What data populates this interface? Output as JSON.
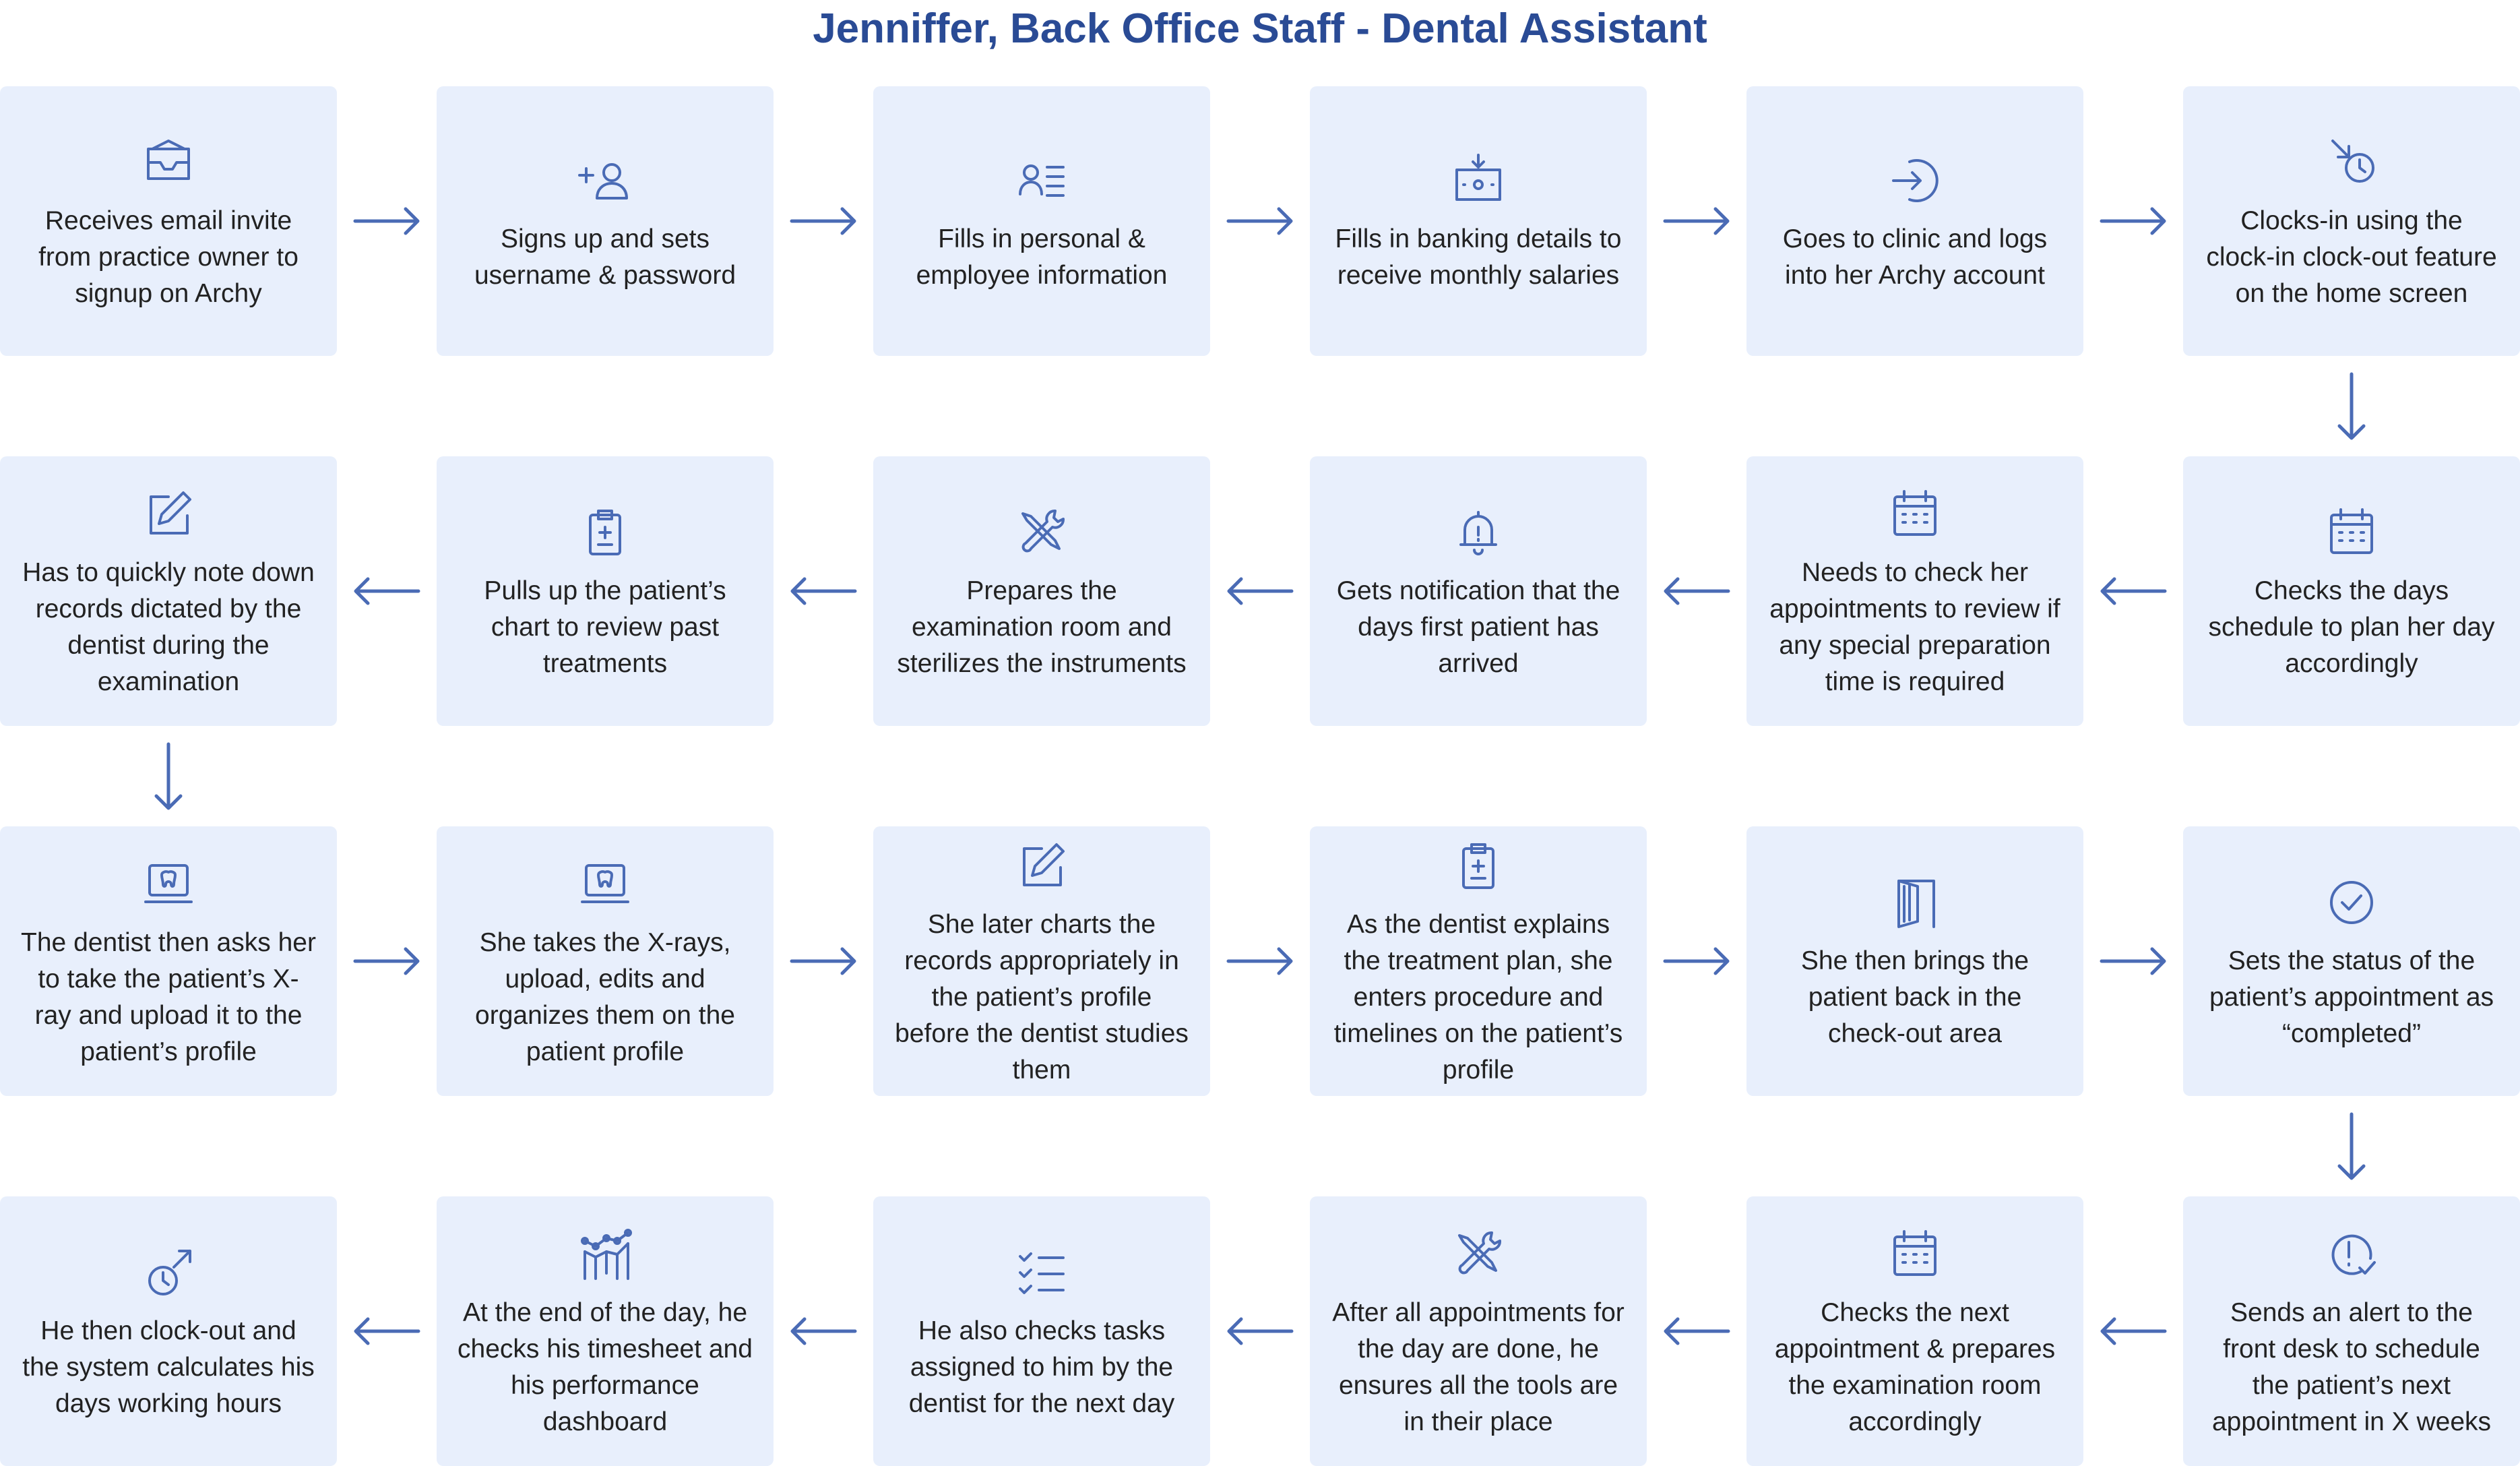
{
  "title": "Jenniffer, Back Office Staff - Dental Assistant",
  "colors": {
    "accent": "#4a6bb5",
    "card": "#e8effc",
    "title": "#2a4b95"
  },
  "rows": [
    [
      {
        "icon": "email-icon",
        "text": "Receives email invite from practice owner to signup on Archy"
      },
      {
        "icon": "add-user-icon",
        "text": "Signs up and sets username & password"
      },
      {
        "icon": "personal-info-icon",
        "text": "Fills in personal & employee information"
      },
      {
        "icon": "banking-icon",
        "text": "Fills in banking details to receive monthly salaries"
      },
      {
        "icon": "login-icon",
        "text": "Goes to clinic and logs into her Archy account"
      },
      {
        "icon": "clock-in-icon",
        "text": "Clocks-in using the clock-in clock-out feature on the home screen"
      }
    ],
    [
      {
        "icon": "calendar-icon",
        "text": "Checks the days schedule to plan her day accordingly"
      },
      {
        "icon": "calendar-icon",
        "text": "Needs to check her appointments to review if any special preparation time is required"
      },
      {
        "icon": "bell-icon",
        "text": "Gets notification that the days first patient has arrived"
      },
      {
        "icon": "tools-icon",
        "text": "Prepares the examination room and sterilizes the instruments"
      },
      {
        "icon": "clipboard-icon",
        "text": "Pulls up the patient’s chart to review past treatments"
      },
      {
        "icon": "edit-icon",
        "text": "Has to quickly note down records dictated by the dentist during the examination"
      }
    ],
    [
      {
        "icon": "tooth-laptop-icon",
        "text": "The dentist then asks her to take the patient’s X-ray and upload it to the patient’s profile"
      },
      {
        "icon": "tooth-laptop-icon",
        "text": "She takes the X-rays, upload, edits and organizes them on the patient profile"
      },
      {
        "icon": "edit-icon",
        "text": "She later charts the records appropriately in the patient’s profile before the dentist studies them"
      },
      {
        "icon": "clipboard-icon",
        "text": "As the dentist explains the treatment plan, she enters procedure and timelines on the patient’s profile"
      },
      {
        "icon": "door-icon",
        "text": "She then brings the patient back in the check-out area"
      },
      {
        "icon": "check-circle-icon",
        "text": "Sets the status of the patient’s appointment as “completed”"
      }
    ],
    [
      {
        "icon": "alert-icon",
        "text": "Sends an alert to the front desk to schedule the patient’s next appointment in X weeks"
      },
      {
        "icon": "calendar-icon",
        "text": "Checks the next appointment & prepares the examination room accordingly"
      },
      {
        "icon": "tools-icon",
        "text": "After all appointments for the day are done, he ensures all the tools are in their place"
      },
      {
        "icon": "checklist-icon",
        "text": "He also checks tasks assigned to him by the dentist for the next day"
      },
      {
        "icon": "chart-icon",
        "text": "At the end of the day, he checks his timesheet and his performance dashboard"
      },
      {
        "icon": "clock-out-icon",
        "text": "He then clock-out and the system calculates his days working hours"
      }
    ]
  ]
}
